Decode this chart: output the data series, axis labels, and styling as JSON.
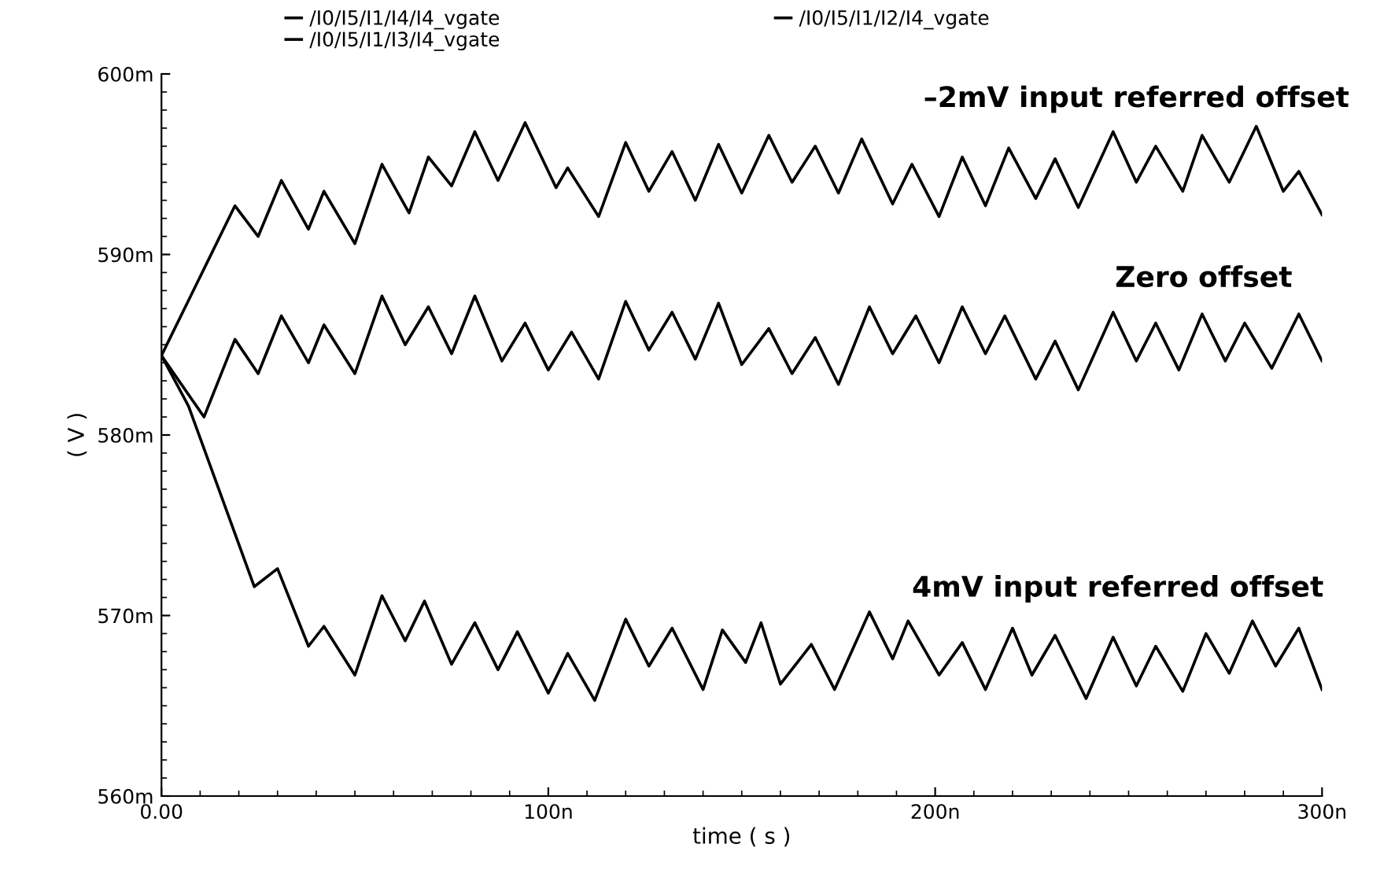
{
  "chart_data": {
    "type": "line",
    "xlabel": "time ( s )",
    "ylabel": "( V )",
    "xlim": [
      0,
      300
    ],
    "xticks": [
      {
        "value": 0,
        "label": "0.00"
      },
      {
        "value": 100,
        "label": "100n"
      },
      {
        "value": 200,
        "label": "200n"
      },
      {
        "value": 300,
        "label": "300n"
      }
    ],
    "ylim": [
      560,
      600
    ],
    "yticks": [
      {
        "value": 560,
        "label": "560m"
      },
      {
        "value": 570,
        "label": "570m"
      },
      {
        "value": 580,
        "label": "580m"
      },
      {
        "value": 590,
        "label": "590m"
      },
      {
        "value": 600,
        "label": "600m"
      }
    ],
    "grid": false,
    "legend": "top",
    "line_style": "solid",
    "series": [
      {
        "name": "/I0/I5/I1/I4/I4_vgate",
        "color": "#000000",
        "x": [
          0,
          19,
          25,
          31,
          38,
          42,
          50,
          57,
          64,
          69,
          75,
          81,
          87,
          94,
          102,
          105,
          113,
          120,
          126,
          132,
          138,
          144,
          150,
          157,
          163,
          169,
          175,
          181,
          189,
          194,
          201,
          207,
          213,
          219,
          226,
          231,
          237,
          246,
          252,
          257,
          264,
          269,
          276,
          283,
          290,
          294,
          300
        ],
        "values": [
          584.4,
          592.7,
          591.0,
          594.1,
          591.4,
          593.5,
          590.6,
          595.0,
          592.3,
          595.4,
          593.8,
          596.8,
          594.1,
          597.3,
          593.7,
          594.8,
          592.1,
          596.2,
          593.5,
          595.7,
          593.0,
          596.1,
          593.4,
          596.6,
          594.0,
          596.0,
          593.4,
          596.4,
          592.8,
          595.0,
          592.1,
          595.4,
          592.7,
          595.9,
          593.1,
          595.3,
          592.6,
          596.8,
          594.0,
          596.0,
          593.5,
          596.6,
          594.0,
          597.1,
          593.5,
          594.6,
          592.2
        ]
      },
      {
        "name": "/I0/I5/I1/I3/I4_vgate",
        "color": "#000000",
        "x": [
          0,
          7,
          24,
          30,
          38,
          42,
          50,
          57,
          63,
          68,
          75,
          81,
          87,
          92,
          100,
          105,
          112,
          120,
          126,
          132,
          140,
          145,
          151,
          155,
          160,
          168,
          174,
          183,
          189,
          193,
          201,
          207,
          213,
          220,
          225,
          231,
          239,
          246,
          252,
          257,
          264,
          270,
          276,
          282,
          288,
          294,
          300
        ],
        "values": [
          584.4,
          581.6,
          571.6,
          572.6,
          568.3,
          569.4,
          566.7,
          571.1,
          568.6,
          570.8,
          567.3,
          569.6,
          567.0,
          569.1,
          565.7,
          567.9,
          565.3,
          569.8,
          567.2,
          569.3,
          565.9,
          569.2,
          567.4,
          569.6,
          566.2,
          568.4,
          565.9,
          570.2,
          567.6,
          569.7,
          566.7,
          568.5,
          565.9,
          569.3,
          566.7,
          568.9,
          565.4,
          568.8,
          566.1,
          568.3,
          565.8,
          569.0,
          566.8,
          569.7,
          567.2,
          569.3,
          565.9
        ]
      },
      {
        "name": "/I0/I5/I1/I2/I4_vgate",
        "color": "#000000",
        "x": [
          0,
          11,
          19,
          25,
          31,
          38,
          42,
          50,
          57,
          63,
          69,
          75,
          81,
          88,
          94,
          100,
          106,
          113,
          120,
          126,
          132,
          138,
          144,
          150,
          157,
          163,
          169,
          175,
          183,
          189,
          195,
          201,
          207,
          213,
          218,
          226,
          231,
          237,
          246,
          252,
          257,
          263,
          269,
          275,
          280,
          287,
          294,
          300
        ],
        "values": [
          584.4,
          581.0,
          585.3,
          583.4,
          586.6,
          584.0,
          586.1,
          583.4,
          587.7,
          585.0,
          587.1,
          584.5,
          587.7,
          584.1,
          586.2,
          583.6,
          585.7,
          583.1,
          587.4,
          584.7,
          586.8,
          584.2,
          587.3,
          583.9,
          585.9,
          583.4,
          585.4,
          582.8,
          587.1,
          584.5,
          586.6,
          584.0,
          587.1,
          584.5,
          586.6,
          583.1,
          585.2,
          582.5,
          586.8,
          584.1,
          586.2,
          583.6,
          586.7,
          584.1,
          586.2,
          583.7,
          586.7,
          584.1
        ]
      }
    ],
    "annotations": [
      "–2mV input referred offset",
      "Zero offset",
      "4mV input referred offset"
    ]
  }
}
